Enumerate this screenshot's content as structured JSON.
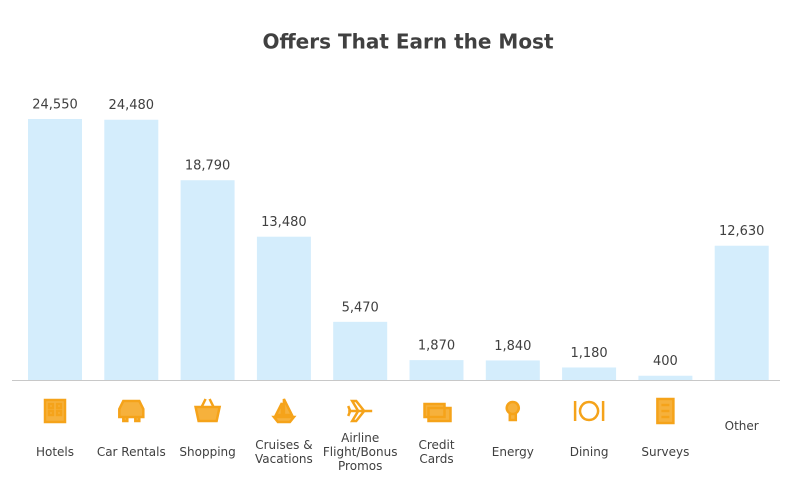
{
  "chart_data": {
    "type": "bar",
    "title": "Offers That Earn the Most",
    "categories": [
      "Hotels",
      "Car Rentals",
      "Shopping",
      "Cruises & Vacations",
      "Airline Flight/Bonus Promos",
      "Credit Cards",
      "Energy",
      "Dining",
      "Surveys",
      "Other"
    ],
    "values": [
      24550,
      24480,
      18790,
      13480,
      5470,
      1870,
      1840,
      1180,
      400,
      12630
    ],
    "value_labels": [
      "24,550",
      "24,480",
      "18,790",
      "13,480",
      "5,470",
      "1,870",
      "1,840",
      "1,180",
      "400",
      "12,630"
    ],
    "color": "#d4edfc"
  }
}
